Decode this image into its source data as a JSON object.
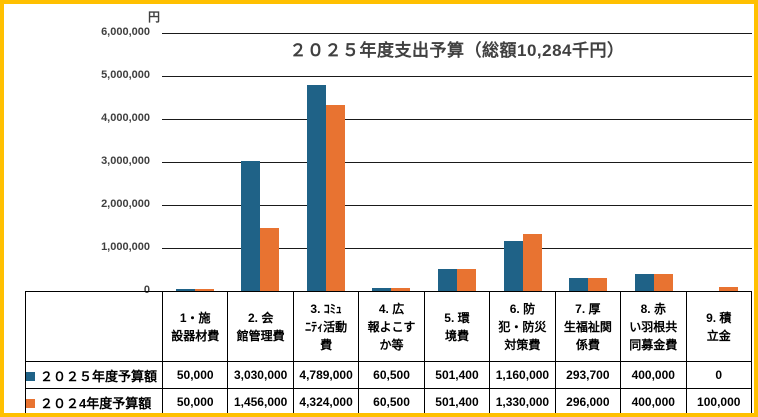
{
  "frame": {
    "border_color": "#FFC000",
    "background": "#FFFFFF"
  },
  "chart": {
    "unit_label": "円",
    "text_color": "#404040",
    "gridline_color": "#1a1a1a"
  },
  "chart_data": {
    "type": "bar",
    "title": "２０２５年度支出予算（総額10,284千円）",
    "unit": "円",
    "xlabel": "",
    "ylabel": "円",
    "categories": [
      "1・施\n設器材費",
      "2. 会\n館管理費",
      "3. ｺﾐｭ\nﾆﾃｨ活動\n費",
      "4. 広\n報よこす\nか等",
      "5. 環\n境費",
      "6. 防\n犯・防災\n対策費",
      "7. 厚\n生福祉関\n係費",
      "8. 赤\nい羽根共\n同募金費",
      "9. 積\n立金"
    ],
    "series": [
      {
        "name": "２０２５年度予算額",
        "color": "#1F6287",
        "values": [
          50000,
          3030000,
          4789000,
          60500,
          501400,
          1160000,
          293700,
          400000,
          0
        ]
      },
      {
        "name": "２０２4年度予算額",
        "color": "#E87331",
        "values": [
          50000,
          1456000,
          4324000,
          60500,
          501400,
          1330000,
          296000,
          400000,
          100000
        ]
      }
    ],
    "ylim": [
      0,
      6000000
    ],
    "y_ticks": [
      "6,000,000",
      "5,000,000",
      "4,000,000",
      "3,000,000",
      "2,000,000",
      "1,000,000",
      "0"
    ],
    "grid": true,
    "legend_position": "table-left-column"
  },
  "table": {
    "value_rows": [
      [
        "50,000",
        "3,030,000",
        "4,789,000",
        "60,500",
        "501,400",
        "1,160,000",
        "293,700",
        "400,000",
        "0"
      ],
      [
        "50,000",
        "1,456,000",
        "4,324,000",
        "60,500",
        "501,400",
        "1,330,000",
        "296,000",
        "400,000",
        "100,000"
      ]
    ]
  }
}
